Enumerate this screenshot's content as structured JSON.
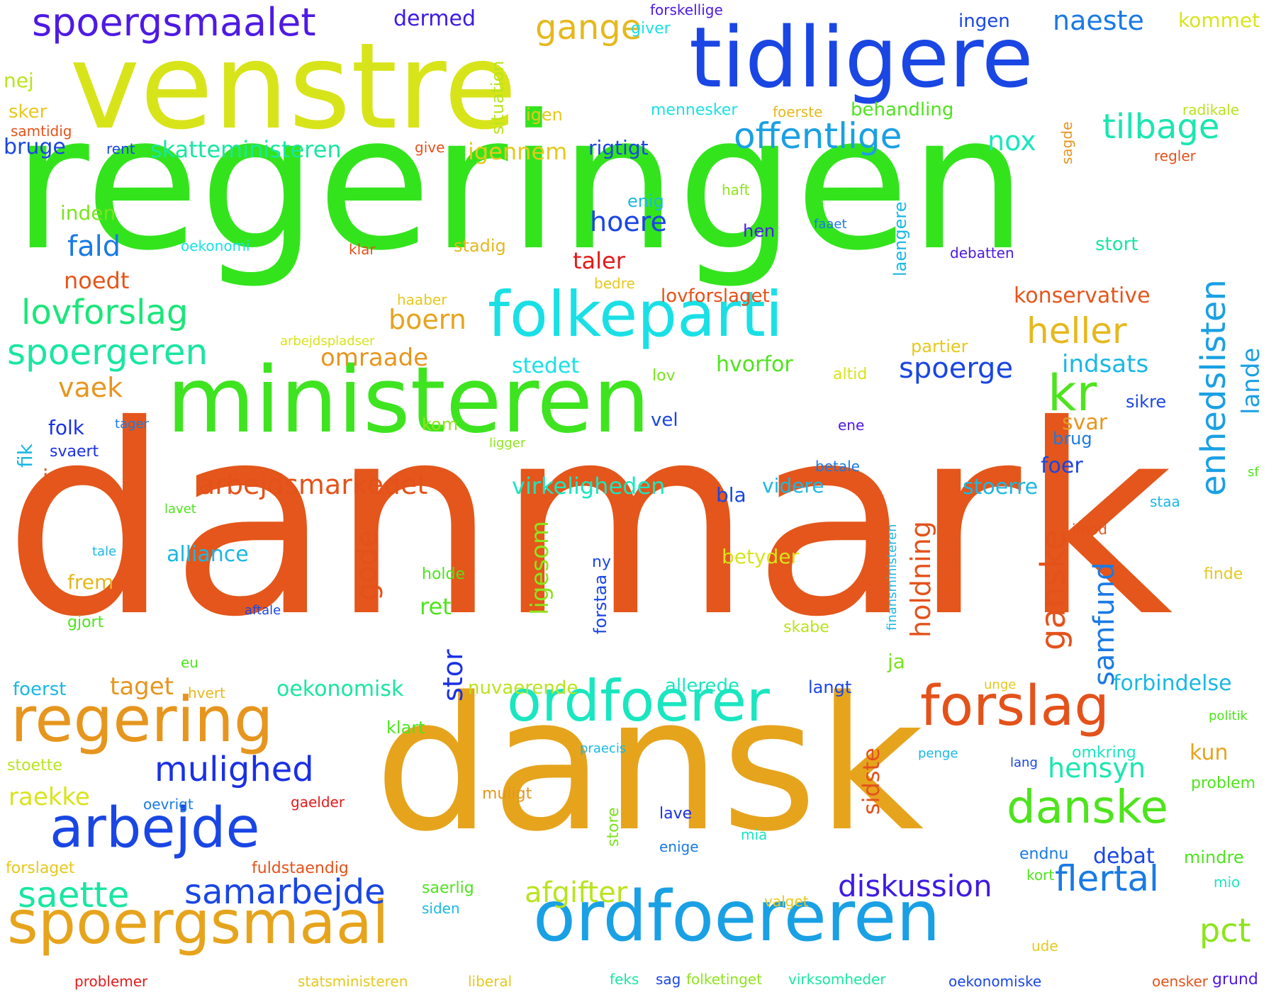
{
  "cloud": {
    "words": [
      {
        "text": "danmark",
        "color": "#e4561b"
      },
      {
        "text": "regeringen",
        "color": "#33e41d"
      },
      {
        "text": "ministeren",
        "color": "#3ee41f"
      },
      {
        "text": "dansk",
        "color": "#e6a41d"
      },
      {
        "text": "venstre",
        "color": "#d8e41a"
      },
      {
        "text": "tidligere",
        "color": "#1a46e4"
      },
      {
        "text": "ordfoereren",
        "color": "#1aa0e4"
      },
      {
        "text": "spoergsmaal",
        "color": "#e6a41d"
      },
      {
        "text": "folkeparti",
        "color": "#1ae0e6"
      },
      {
        "text": "ordfoerer",
        "color": "#1ae6c0"
      },
      {
        "text": "regering",
        "color": "#e6961e"
      },
      {
        "text": "arbejde",
        "color": "#1a46e4"
      },
      {
        "text": "forslag",
        "color": "#e4521b"
      },
      {
        "text": "danske",
        "color": "#4ee41d"
      },
      {
        "text": "spoergsmaalet",
        "color": "#4e1ae4"
      },
      {
        "text": "offentlige",
        "color": "#1aa0e4"
      },
      {
        "text": "tilbage",
        "color": "#1ae6b0"
      },
      {
        "text": "spoergeren",
        "color": "#1ae6a0"
      },
      {
        "text": "lovforslag",
        "color": "#1ae67a"
      },
      {
        "text": "kr",
        "color": "#4ee41d"
      },
      {
        "text": "enhedslisten",
        "color": "#1aa0e4"
      },
      {
        "text": "heller",
        "color": "#e6b81d"
      },
      {
        "text": "samarbejde",
        "color": "#1a46e4"
      },
      {
        "text": "mulighed",
        "color": "#1a30e4"
      },
      {
        "text": "saette",
        "color": "#1ae6a0"
      },
      {
        "text": "flertal",
        "color": "#1a7ae4"
      },
      {
        "text": "diskussion",
        "color": "#3e1ae4"
      },
      {
        "text": "gange",
        "color": "#e6b81d"
      },
      {
        "text": "naeste",
        "color": "#1a7ae4"
      },
      {
        "text": "afgifter",
        "color": "#b8e41d"
      },
      {
        "text": "pct",
        "color": "#8ee41d"
      },
      {
        "text": "hensyn",
        "color": "#1ae6b0"
      },
      {
        "text": "holdning",
        "color": "#e4521b"
      },
      {
        "text": "gode",
        "color": "#e4521b"
      },
      {
        "text": "ganske",
        "color": "#e4521b"
      },
      {
        "text": "samfund",
        "color": "#1a7ae4"
      },
      {
        "text": "stor",
        "color": "#1a30e4"
      },
      {
        "text": "ligesom",
        "color": "#8ee41d"
      },
      {
        "text": "sidste",
        "color": "#e4521b"
      },
      {
        "text": "lande",
        "color": "#1aa0e4"
      },
      {
        "text": "arbejdsmarkedet",
        "color": "#e4521b"
      },
      {
        "text": "skatteministeren",
        "color": "#1ae6a0"
      },
      {
        "text": "omraade",
        "color": "#e6961e"
      },
      {
        "text": "boern",
        "color": "#e6a41d"
      },
      {
        "text": "hoere",
        "color": "#1a46e4"
      },
      {
        "text": "fald",
        "color": "#1a7ae4"
      },
      {
        "text": "vaek",
        "color": "#e6961e"
      },
      {
        "text": "igennem",
        "color": "#e6c81d"
      },
      {
        "text": "nox",
        "color": "#1ae6c0"
      },
      {
        "text": "konservative",
        "color": "#e4561b"
      },
      {
        "text": "spoerge",
        "color": "#1a46e4"
      },
      {
        "text": "indsats",
        "color": "#1ab8e4"
      },
      {
        "text": "virkeligheden",
        "color": "#1ae6c0"
      },
      {
        "text": "alliance",
        "color": "#1ab8e4"
      },
      {
        "text": "stoerre",
        "color": "#1ab8e4"
      },
      {
        "text": "forbindelse",
        "color": "#1ab8e4"
      },
      {
        "text": "oekonomisk",
        "color": "#1ae6a0"
      },
      {
        "text": "taget",
        "color": "#e6961e"
      },
      {
        "text": "raekke",
        "color": "#d8e41a"
      },
      {
        "text": "debat",
        "color": "#1a46e4"
      },
      {
        "text": "stedet",
        "color": "#1ae0e6"
      },
      {
        "text": "hvorfor",
        "color": "#4ee41d"
      },
      {
        "text": "svar",
        "color": "#e6961e"
      },
      {
        "text": "taler",
        "color": "#e41a1a"
      },
      {
        "text": "lovforslaget",
        "color": "#e4521b"
      },
      {
        "text": "noedt",
        "color": "#e4561b"
      },
      {
        "text": "inden",
        "color": "#7ae41d"
      },
      {
        "text": "bruge",
        "color": "#1a46e4"
      },
      {
        "text": "rigtigt",
        "color": "#1a46e4"
      },
      {
        "text": "dermed",
        "color": "#3e1ae4"
      },
      {
        "text": "ingen",
        "color": "#1a46e4"
      },
      {
        "text": "kommet",
        "color": "#d8e41a"
      },
      {
        "text": "nej",
        "color": "#b8e41d"
      },
      {
        "text": "sker",
        "color": "#e6c81d"
      },
      {
        "text": "samtidig",
        "color": "#e4521b"
      },
      {
        "text": "rent",
        "color": "#1a46e4"
      },
      {
        "text": "give",
        "color": "#e4521b"
      },
      {
        "text": "igen",
        "color": "#e6c81d"
      },
      {
        "text": "situation",
        "color": "#b8e41d"
      },
      {
        "text": "giver",
        "color": "#1ae0e6"
      },
      {
        "text": "forskellige",
        "color": "#4e1ae4"
      },
      {
        "text": "mennesker",
        "color": "#1ae0e6"
      },
      {
        "text": "foerste",
        "color": "#e6b81d"
      },
      {
        "text": "behandling",
        "color": "#4ee41d"
      },
      {
        "text": "sagde",
        "color": "#e6961e"
      },
      {
        "text": "radikale",
        "color": "#b8e41d"
      },
      {
        "text": "regler",
        "color": "#e4521b"
      },
      {
        "text": "enig",
        "color": "#1ab8e4"
      },
      {
        "text": "haft",
        "color": "#8ee41d"
      },
      {
        "text": "laengere",
        "color": "#1ab8e4"
      },
      {
        "text": "hen",
        "color": "#4e1ae4"
      },
      {
        "text": "faaet",
        "color": "#1a7ae4"
      },
      {
        "text": "oekonomi",
        "color": "#1ae0e6"
      },
      {
        "text": "klar",
        "color": "#e4521b"
      },
      {
        "text": "stadig",
        "color": "#e6b81d"
      },
      {
        "text": "debatten",
        "color": "#4e1ae4"
      },
      {
        "text": "stort",
        "color": "#1ae6a0"
      },
      {
        "text": "haaber",
        "color": "#e6c81d"
      },
      {
        "text": "bedre",
        "color": "#e6c81d"
      },
      {
        "text": "arbejdspladser",
        "color": "#d8e41a"
      },
      {
        "text": "partier",
        "color": "#e6c81d"
      },
      {
        "text": "lov",
        "color": "#7ae41d"
      },
      {
        "text": "altid",
        "color": "#d8e41a"
      },
      {
        "text": "folk",
        "color": "#1a30e4"
      },
      {
        "text": "tager",
        "color": "#1a7ae4"
      },
      {
        "text": "fik",
        "color": "#1ab8e4"
      },
      {
        "text": "svaert",
        "color": "#1a30e4"
      },
      {
        "text": "ligger",
        "color": "#8ee41d"
      },
      {
        "text": "kom",
        "color": "#8ee41d"
      },
      {
        "text": "vel",
        "color": "#1a46e4"
      },
      {
        "text": "ene",
        "color": "#4e1ae4"
      },
      {
        "text": "sikre",
        "color": "#1a46e4"
      },
      {
        "text": "brug",
        "color": "#1a7ae4"
      },
      {
        "text": "foer",
        "color": "#1a46e4"
      },
      {
        "text": "betale",
        "color": "#1a7ae4"
      },
      {
        "text": "job",
        "color": "#e4561b"
      },
      {
        "text": "bla",
        "color": "#1a46e4"
      },
      {
        "text": "videre",
        "color": "#1ab8e4"
      },
      {
        "text": "lavet",
        "color": "#4ee41d"
      },
      {
        "text": "staa",
        "color": "#1ab8e4"
      },
      {
        "text": "sf",
        "color": "#4ee41d"
      },
      {
        "text": "finansministeren",
        "color": "#1ab8e4"
      },
      {
        "text": "imod",
        "color": "#e4521b"
      },
      {
        "text": "tale",
        "color": "#1ab8e4"
      },
      {
        "text": "frem",
        "color": "#e6b81d"
      },
      {
        "text": "holde",
        "color": "#4ee41d"
      },
      {
        "text": "ny",
        "color": "#1a46e4"
      },
      {
        "text": "forstaa",
        "color": "#1a46e4"
      },
      {
        "text": "betyder",
        "color": "#d8e41a"
      },
      {
        "text": "finde",
        "color": "#e6c81d"
      },
      {
        "text": "ret",
        "color": "#4ee41d"
      },
      {
        "text": "ja",
        "color": "#7ae41d"
      },
      {
        "text": "aftale",
        "color": "#1a46e4"
      },
      {
        "text": "skabe",
        "color": "#b8e41d"
      },
      {
        "text": "gjort",
        "color": "#4ee41d"
      },
      {
        "text": "eu",
        "color": "#4ee41d"
      },
      {
        "text": "foerst",
        "color": "#1ab8e4"
      },
      {
        "text": "hvert",
        "color": "#e6b81d"
      },
      {
        "text": "nuvaerende",
        "color": "#b8e41d"
      },
      {
        "text": "allerede",
        "color": "#1ae6c0"
      },
      {
        "text": "langt",
        "color": "#1a46e4"
      },
      {
        "text": "unge",
        "color": "#e6c81d"
      },
      {
        "text": "klart",
        "color": "#4ee41d"
      },
      {
        "text": "politik",
        "color": "#4ee41d"
      },
      {
        "text": "praecis",
        "color": "#1ab8e4"
      },
      {
        "text": "omkring",
        "color": "#1ae6c0"
      },
      {
        "text": "kun",
        "color": "#e6a41d"
      },
      {
        "text": "stoette",
        "color": "#b8e41d"
      },
      {
        "text": "penge",
        "color": "#1ab8e4"
      },
      {
        "text": "lang",
        "color": "#1a46e4"
      },
      {
        "text": "muligt",
        "color": "#e6961e"
      },
      {
        "text": "problem",
        "color": "#4ee41d"
      },
      {
        "text": "oevrigt",
        "color": "#1a7ae4"
      },
      {
        "text": "gaelder",
        "color": "#e41a1a"
      },
      {
        "text": "lave",
        "color": "#1a30e4"
      },
      {
        "text": "store",
        "color": "#7ae41d"
      },
      {
        "text": "mia",
        "color": "#1ae6c0"
      },
      {
        "text": "enige",
        "color": "#1a7ae4"
      },
      {
        "text": "endnu",
        "color": "#1a7ae4"
      },
      {
        "text": "mindre",
        "color": "#4ee41d"
      },
      {
        "text": "forslaget",
        "color": "#e6c81d"
      },
      {
        "text": "fuldstaendig",
        "color": "#e4521b"
      },
      {
        "text": "kort",
        "color": "#4ee41d"
      },
      {
        "text": "mio",
        "color": "#1ae6c0"
      },
      {
        "text": "saerlig",
        "color": "#4ee41d"
      },
      {
        "text": "siden",
        "color": "#1ab8e4"
      },
      {
        "text": "valget",
        "color": "#e6c81d"
      },
      {
        "text": "ude",
        "color": "#e6c81d"
      },
      {
        "text": "problemer",
        "color": "#e41a1a"
      },
      {
        "text": "statsministeren",
        "color": "#e6c81d"
      },
      {
        "text": "liberal",
        "color": "#e6c81d"
      },
      {
        "text": "feks",
        "color": "#1ae6a0"
      },
      {
        "text": "sag",
        "color": "#1a46e4"
      },
      {
        "text": "folketinget",
        "color": "#8ee41d"
      },
      {
        "text": "virksomheder",
        "color": "#1ae6a0"
      },
      {
        "text": "oekonomiske",
        "color": "#1a46e4"
      },
      {
        "text": "oensker",
        "color": "#e4521b"
      },
      {
        "text": "grund",
        "color": "#4e1ae4"
      }
    ]
  }
}
